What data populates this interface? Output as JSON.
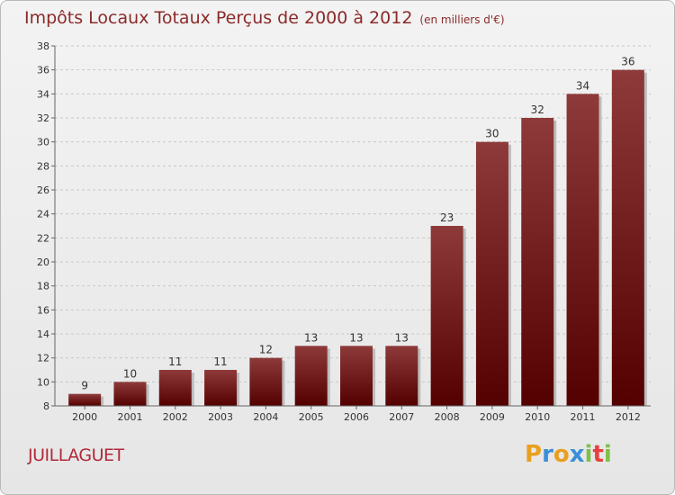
{
  "header": {
    "title": "Impôts Locaux Totaux Perçus de 2000 à 2012",
    "unit": "(en milliers d'€)"
  },
  "footer": {
    "commune": "JUILLAGUET",
    "logo_letters": [
      "P",
      "r",
      "o",
      "x",
      "i",
      "t",
      "i"
    ],
    "logo_colors": [
      "#e8a020",
      "#3a8fd8",
      "#e8a020",
      "#3a8fd8",
      "#7cc04a",
      "#e84040",
      "#7cc04a"
    ]
  },
  "chart_data": {
    "type": "bar",
    "categories": [
      "2000",
      "2001",
      "2002",
      "2003",
      "2004",
      "2005",
      "2006",
      "2007",
      "2008",
      "2009",
      "2010",
      "2011",
      "2012"
    ],
    "values": [
      9,
      10,
      11,
      11,
      12,
      13,
      13,
      13,
      23,
      30,
      32,
      34,
      36
    ],
    "ylim": [
      8,
      38
    ],
    "yticks": [
      8,
      10,
      12,
      14,
      16,
      18,
      20,
      22,
      24,
      26,
      28,
      30,
      32,
      34,
      36,
      38
    ],
    "grid": true,
    "bar_color": "#7a1a1a"
  }
}
